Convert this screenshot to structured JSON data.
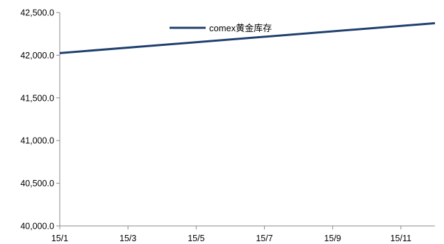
{
  "chart_data": {
    "type": "line",
    "x": [
      "15/1",
      "15/12"
    ],
    "series": [
      {
        "name": "comex黄金库存",
        "color": "#1f3f6e",
        "values": [
          42025,
          42375
        ]
      }
    ],
    "xticks": [
      "15/1",
      "15/3",
      "15/5",
      "15/7",
      "15/9",
      "15/11"
    ],
    "xlim": [
      "15/1",
      "15/12"
    ],
    "yticks": [
      "40,000.0",
      "40,500.0",
      "41,000.0",
      "41,500.0",
      "42,000.0",
      "42,500.0"
    ],
    "ylim": [
      40000,
      42500
    ],
    "grid": false,
    "legend_position": "top-center"
  }
}
